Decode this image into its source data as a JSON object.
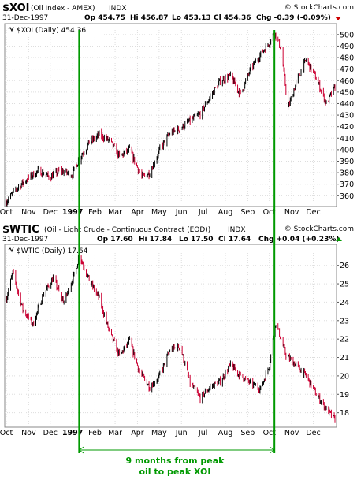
{
  "colors": {
    "up": "#000000",
    "down": "#cc0033",
    "grid": "#dddddd",
    "annotation": "#009900",
    "chg_down": "#cc0000",
    "chg_up": "#009900"
  },
  "top": {
    "symbol": "$XOI",
    "name": "(Oil Index - AMEX)",
    "exchange": "INDX",
    "copyright": "© StockCharts.com",
    "date": "31-Dec-1997",
    "open": "Op 454.75",
    "high": "Hi 456.87",
    "low": "Lo 453.13",
    "close": "Cl 454.36",
    "chg": "Chg -0.39 (-0.09%)",
    "legend": "$XOI (Daily) 454.36"
  },
  "bottom": {
    "symbol": "$WTIC",
    "name": "(Oil - Light Crude - Continuous Contract (EOD))",
    "exchange": "INDX",
    "copyright": "© StockCharts.com",
    "date": "31-Dec-1997",
    "open": "Op 17.60",
    "high": "Hi 17.84",
    "low": "Lo 17.50",
    "close": "Cl 17.64",
    "chg": "Chg +0.04 (+0.23%)",
    "legend": "$WTIC (Daily) 17.64"
  },
  "annotation": {
    "line1": "9 months from peak",
    "line2": "oil to peak XOI"
  },
  "chart_data": [
    {
      "type": "line",
      "title": "$XOI (Oil Index - AMEX) INDX",
      "series": [
        {
          "name": "$XOI (Daily) 454.36"
        }
      ],
      "x_tick_labels": [
        "Oct",
        "Nov",
        "Dec",
        "1997",
        "Feb",
        "Mar",
        "Apr",
        "May",
        "Jun",
        "Jul",
        "Aug",
        "Sep",
        "Oct",
        "Nov",
        "Dec"
      ],
      "y_ticks": [
        360,
        370,
        380,
        390,
        400,
        410,
        420,
        430,
        440,
        450,
        460,
        470,
        480,
        490,
        500
      ],
      "ylim": [
        352,
        504
      ],
      "points": [
        [
          "1996-10-01",
          355
        ],
        [
          "1996-10-15",
          366
        ],
        [
          "1996-10-31",
          375
        ],
        [
          "1996-11-15",
          382
        ],
        [
          "1996-11-30",
          376
        ],
        [
          "1996-12-15",
          382
        ],
        [
          "1996-12-31",
          378
        ],
        [
          "1997-01-10",
          392
        ],
        [
          "1997-01-24",
          406
        ],
        [
          "1997-02-07",
          413
        ],
        [
          "1997-02-21",
          408
        ],
        [
          "1997-03-07",
          394
        ],
        [
          "1997-03-21",
          400
        ],
        [
          "1997-04-07",
          376
        ],
        [
          "1997-04-18",
          380
        ],
        [
          "1997-05-02",
          400
        ],
        [
          "1997-05-16",
          414
        ],
        [
          "1997-05-30",
          418
        ],
        [
          "1997-06-13",
          425
        ],
        [
          "1997-06-27",
          431
        ],
        [
          "1997-07-11",
          446
        ],
        [
          "1997-07-25",
          460
        ],
        [
          "1997-08-08",
          464
        ],
        [
          "1997-08-22",
          448
        ],
        [
          "1997-09-05",
          470
        ],
        [
          "1997-09-19",
          483
        ],
        [
          "1997-10-03",
          495
        ],
        [
          "1997-10-08",
          502
        ],
        [
          "1997-10-17",
          488
        ],
        [
          "1997-10-27",
          436
        ],
        [
          "1997-11-07",
          458
        ],
        [
          "1997-11-21",
          478
        ],
        [
          "1997-12-05",
          462
        ],
        [
          "1997-12-19",
          440
        ],
        [
          "1997-12-31",
          454.36
        ]
      ]
    },
    {
      "type": "line",
      "title": "$WTIC (Oil - Light Crude - Continuous Contract (EOD)) INDX",
      "series": [
        {
          "name": "$WTIC (Daily) 17.64"
        }
      ],
      "x_tick_labels": [
        "Oct",
        "Nov",
        "Dec",
        "1997",
        "Feb",
        "Mar",
        "Apr",
        "May",
        "Jun",
        "Jul",
        "Aug",
        "Sep",
        "Oct",
        "Nov",
        "Dec"
      ],
      "y_ticks": [
        18,
        19,
        20,
        21,
        22,
        23,
        24,
        25,
        26
      ],
      "ylim": [
        17.3,
        26.8
      ],
      "points": [
        [
          "1996-10-01",
          24.2
        ],
        [
          "1996-10-10",
          25.6
        ],
        [
          "1996-10-24",
          23.6
        ],
        [
          "1996-11-07",
          22.8
        ],
        [
          "1996-11-21",
          24.4
        ],
        [
          "1996-12-05",
          25.3
        ],
        [
          "1996-12-20",
          24.0
        ],
        [
          "1997-01-06",
          25.8
        ],
        [
          "1997-01-10",
          26.6
        ],
        [
          "1997-01-24",
          25.2
        ],
        [
          "1997-02-07",
          24.2
        ],
        [
          "1997-02-21",
          22.4
        ],
        [
          "1997-03-07",
          21.1
        ],
        [
          "1997-03-21",
          21.9
        ],
        [
          "1997-04-04",
          20.2
        ],
        [
          "1997-04-18",
          19.4
        ],
        [
          "1997-05-02",
          20.0
        ],
        [
          "1997-05-16",
          21.4
        ],
        [
          "1997-05-30",
          21.6
        ],
        [
          "1997-06-13",
          19.6
        ],
        [
          "1997-06-27",
          18.8
        ],
        [
          "1997-07-11",
          19.4
        ],
        [
          "1997-07-25",
          19.7
        ],
        [
          "1997-08-08",
          20.6
        ],
        [
          "1997-08-22",
          20.0
        ],
        [
          "1997-09-05",
          19.6
        ],
        [
          "1997-09-19",
          19.3
        ],
        [
          "1997-10-01",
          20.6
        ],
        [
          "1997-10-07",
          22.2
        ],
        [
          "1997-10-10",
          22.9
        ],
        [
          "1997-10-24",
          21.1
        ],
        [
          "1997-11-07",
          20.6
        ],
        [
          "1997-11-21",
          20.0
        ],
        [
          "1997-12-05",
          19.0
        ],
        [
          "1997-12-19",
          18.2
        ],
        [
          "1997-12-31",
          17.64
        ]
      ]
    }
  ]
}
